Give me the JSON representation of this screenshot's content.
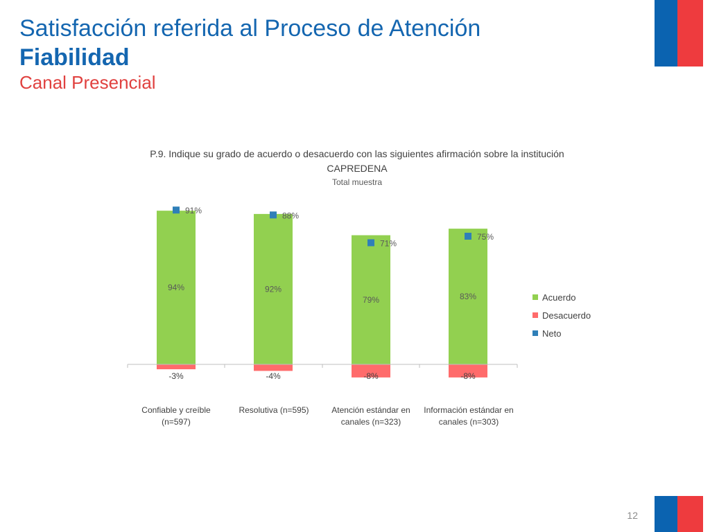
{
  "header": {
    "title": "Satisfacción referida al Proceso de Atención",
    "subtitle": "Fiabilidad",
    "channel": "Canal Presencial"
  },
  "footer": {
    "page_number": "12"
  },
  "colors": {
    "acuerdo": "#92d050",
    "desacuerdo": "#ff6b6b",
    "neto": "#2f7fb8"
  },
  "chart_data": {
    "type": "bar",
    "title": "P.9. Indique su grado de acuerdo o desacuerdo con las siguientes afirmación sobre la institución CAPREDENA",
    "subtitle": "Total muestra",
    "categories": [
      "Confiable y creíble (n=597)",
      "Resolutiva (n=595)",
      "Atención estándar en canales (n=323)",
      "Información estándar en canales (n=303)"
    ],
    "series": [
      {
        "name": "Acuerdo",
        "values": [
          94,
          92,
          79,
          83
        ],
        "labels": [
          "94%",
          "92%",
          "79%",
          "83%"
        ]
      },
      {
        "name": "Desacuerdo",
        "values": [
          -3,
          -4,
          -8,
          -8
        ],
        "labels": [
          "-3%",
          "-4%",
          "-8%",
          "-8%"
        ]
      },
      {
        "name": "Neto",
        "values": [
          91,
          88,
          71,
          75
        ],
        "labels": [
          "91%",
          "88%",
          "71%",
          "75%"
        ]
      }
    ],
    "legend_position": "right"
  }
}
